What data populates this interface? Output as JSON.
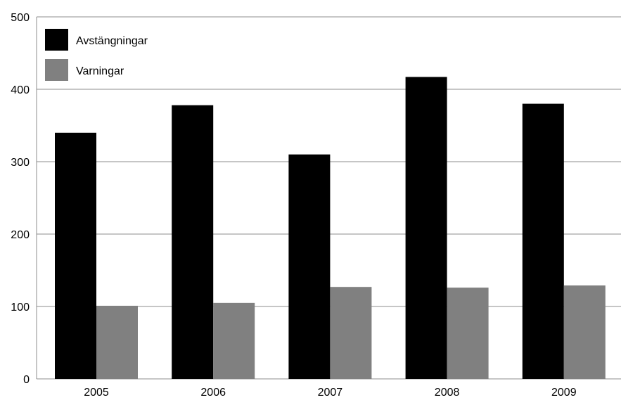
{
  "chart_data": {
    "type": "bar",
    "title": "",
    "xlabel": "",
    "ylabel": "",
    "categories": [
      "2005",
      "2006",
      "2007",
      "2008",
      "2009"
    ],
    "series": [
      {
        "name": "Avstängningar",
        "values": [
          340,
          378,
          310,
          417,
          380
        ],
        "color": "#000000"
      },
      {
        "name": "Varningar",
        "values": [
          101,
          105,
          127,
          126,
          129
        ],
        "color": "#808080"
      }
    ],
    "ylim": [
      0,
      500
    ],
    "yticks": [
      "0",
      "100",
      "200",
      "300",
      "400",
      "500"
    ],
    "grid": true,
    "legend_position": "top-left"
  }
}
